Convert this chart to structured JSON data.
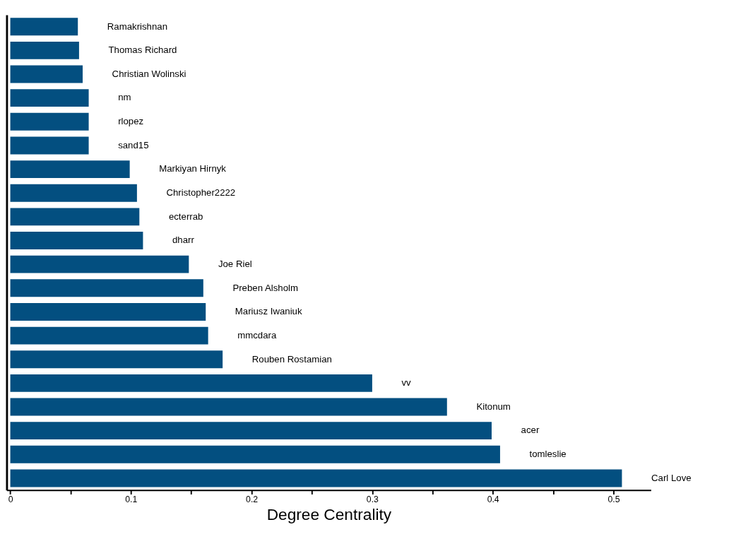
{
  "chart_data": {
    "type": "bar",
    "orientation": "horizontal",
    "xlabel": "Degree Centrality",
    "categories": [
      "Ramakrishnan",
      "Thomas Richard",
      "Christian Wolinski",
      "nm",
      "rlopez",
      "sand15",
      "Markiyan Hirnyk",
      "Christopher2222",
      "ecterrab",
      "dharr",
      "Joe Riel",
      "Preben Alsholm",
      "Mariusz Iwaniuk",
      "mmcdara",
      "Rouben Rostamian",
      "vv",
      "Kitonum",
      "acer",
      "tomleslie",
      "Carl Love"
    ],
    "values": [
      0.056,
      0.057,
      0.06,
      0.065,
      0.065,
      0.065,
      0.099,
      0.105,
      0.107,
      0.11,
      0.148,
      0.16,
      0.162,
      0.164,
      0.176,
      0.3,
      0.362,
      0.399,
      0.406,
      0.507
    ],
    "color": "#034f80",
    "xlim": [
      -0.003,
      0.531
    ],
    "xticks": [
      0,
      {
        "value": 0.05,
        "label": null
      },
      0.1,
      {
        "value": 0.15,
        "label": null
      },
      0.2,
      {
        "value": 0.25,
        "label": null
      },
      0.3,
      {
        "value": 0.35,
        "label": null
      },
      0.4,
      {
        "value": 0.45,
        "label": null
      },
      0.5
    ],
    "tick_labels": "x",
    "grid": false
  }
}
